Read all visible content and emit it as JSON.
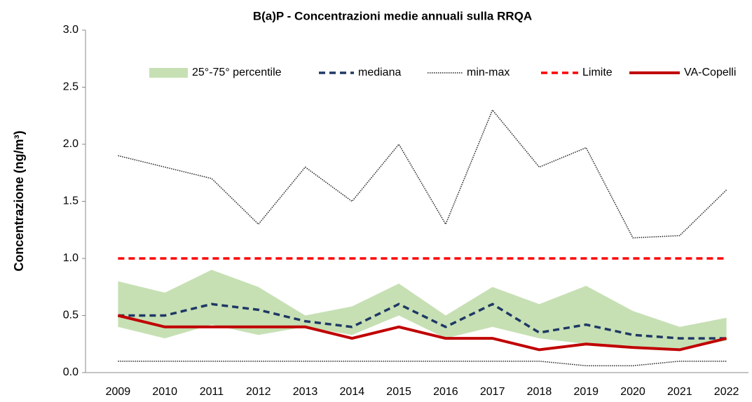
{
  "chart_data": {
    "type": "line",
    "title": "B(a)P - Concentrazioni medie annuali sulla RRQA",
    "y_label": "Concentrazione (ng/m³)",
    "categories": [
      "2009",
      "2010",
      "2011",
      "2012",
      "2013",
      "2014",
      "2015",
      "2016",
      "2017",
      "2018",
      "2019",
      "2020",
      "2021",
      "2022"
    ],
    "ylim": [
      0,
      3
    ],
    "yticks": [
      {
        "value": 0,
        "label": "0.0"
      },
      0.5,
      {
        "value": 1,
        "label": "1.0"
      },
      1.5,
      {
        "value": 2,
        "label": "2.0"
      },
      2.5,
      {
        "value": 3,
        "label": "3.0"
      }
    ],
    "grid": false,
    "legend": "top",
    "series": [
      {
        "name": "25°-75° percentile",
        "kind": "band",
        "color": "#c6e0b4",
        "low": [
          0.4,
          0.3,
          0.42,
          0.33,
          0.4,
          0.33,
          0.5,
          0.3,
          0.4,
          0.3,
          0.25,
          0.22,
          0.2,
          0.28
        ],
        "high": [
          0.8,
          0.7,
          0.9,
          0.75,
          0.5,
          0.58,
          0.78,
          0.5,
          0.75,
          0.6,
          0.76,
          0.54,
          0.4,
          0.48
        ]
      },
      {
        "name": "mediana",
        "kind": "line",
        "style": "dashed",
        "color": "#1f3864",
        "values": [
          0.5,
          0.5,
          0.6,
          0.55,
          0.45,
          0.4,
          0.6,
          0.4,
          0.6,
          0.35,
          0.42,
          0.33,
          0.3,
          0.3
        ]
      },
      {
        "name": "min-max",
        "kind": "range-lines",
        "style": "dotted",
        "color": "#222222",
        "low": [
          0.1,
          0.1,
          0.1,
          0.1,
          0.1,
          0.1,
          0.1,
          0.1,
          0.1,
          0.1,
          0.06,
          0.06,
          0.1,
          0.1
        ],
        "high": [
          1.9,
          1.8,
          1.7,
          1.3,
          1.8,
          1.5,
          2.0,
          1.3,
          2.3,
          1.8,
          1.97,
          1.18,
          1.2,
          1.6
        ]
      },
      {
        "name": "Limite",
        "kind": "line",
        "style": "dashed",
        "color": "#ff0000",
        "values": [
          1,
          1,
          1,
          1,
          1,
          1,
          1,
          1,
          1,
          1,
          1,
          1,
          1,
          1
        ]
      },
      {
        "name": "VA-Copelli",
        "kind": "line",
        "style": "solid",
        "color": "#c00000",
        "values": [
          0.5,
          0.4,
          0.4,
          0.4,
          0.4,
          0.3,
          0.4,
          0.3,
          0.3,
          0.2,
          0.25,
          0.22,
          0.2,
          0.3
        ]
      }
    ]
  }
}
